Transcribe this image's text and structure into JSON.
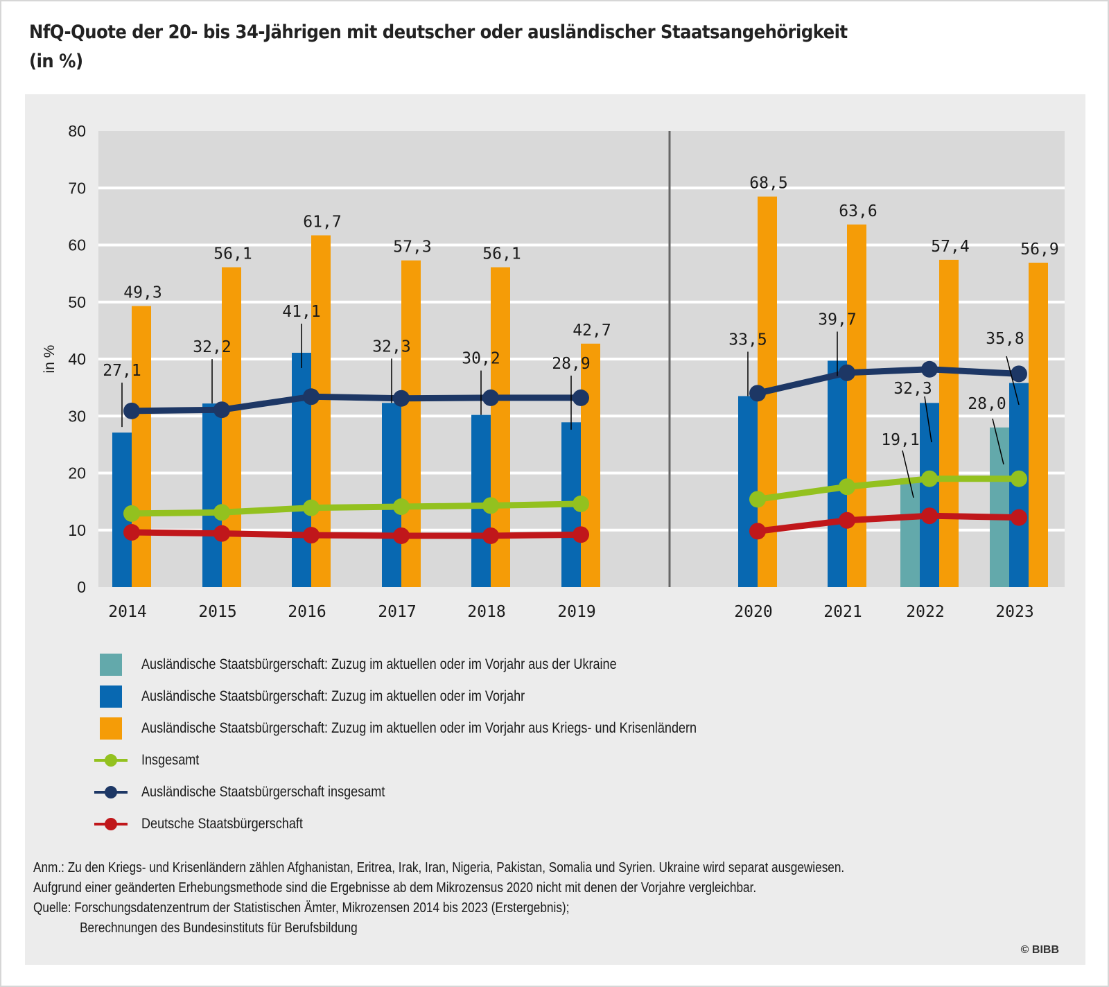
{
  "title_line1": "NfQ-Quote der 20- bis 34-Jährigen mit deutscher oder ausländischer Staatsangehörigkeit",
  "title_line2": "(in %)",
  "colors": {
    "ukraine": "#63a9ab",
    "zuzug": "#0868b1",
    "krisen": "#f59c07",
    "insgesamt": "#93c11f",
    "auslaendisch": "#1d3765",
    "deutsch": "#c0171b",
    "plot_bg": "#d9d9d9",
    "panel_bg": "#ececec",
    "grid": "#ffffff",
    "divider": "#666666"
  },
  "chart_data": {
    "type": "bar",
    "title": "NfQ-Quote der 20- bis 34-Jährigen mit deutscher oder ausländischer Staatsangehörigkeit (in %)",
    "xlabel": "",
    "ylabel": "in %",
    "ylim": [
      0,
      80
    ],
    "yticks": [
      0,
      10,
      20,
      30,
      40,
      50,
      60,
      70,
      80
    ],
    "grid": true,
    "legend_position": "bottom",
    "panels": [
      {
        "name": "left",
        "categories": [
          "2014",
          "2015",
          "2016",
          "2017",
          "2018",
          "2019"
        ]
      },
      {
        "name": "right",
        "categories": [
          "2020",
          "2021",
          "2022",
          "2023"
        ]
      }
    ],
    "categories": [
      "2014",
      "2015",
      "2016",
      "2017",
      "2018",
      "2019",
      "2020",
      "2021",
      "2022",
      "2023"
    ],
    "series": [
      {
        "name": "Ausländische Staatsbürgerschaft: Zuzug im aktuellen oder im Vorjahr aus der Ukraine",
        "kind": "bar",
        "color_key": "ukraine",
        "values": [
          null,
          null,
          null,
          null,
          null,
          null,
          null,
          null,
          19.1,
          28.0
        ],
        "labels": [
          null,
          null,
          null,
          null,
          null,
          null,
          null,
          null,
          "19,1",
          "28,0"
        ]
      },
      {
        "name": "Ausländische Staatsbürgerschaft: Zuzug im aktuellen oder im Vorjahr",
        "kind": "bar",
        "color_key": "zuzug",
        "values": [
          27.1,
          32.2,
          41.1,
          32.3,
          30.2,
          28.9,
          33.5,
          39.7,
          32.3,
          35.8
        ],
        "labels": [
          "27,1",
          "32,2",
          "41,1",
          "32,3",
          "30,2",
          "28,9",
          "33,5",
          "39,7",
          "32,3",
          "35,8"
        ]
      },
      {
        "name": "Ausländische Staatsbürgerschaft: Zuzug im aktuellen oder im Vorjahr aus Kriegs- und Krisenländern",
        "kind": "bar",
        "color_key": "krisen",
        "values": [
          49.3,
          56.1,
          61.7,
          57.3,
          56.1,
          42.7,
          68.5,
          63.6,
          57.4,
          56.9
        ],
        "labels": [
          "49,3",
          "56,1",
          "61,7",
          "57,3",
          "56,1",
          "42,7",
          "68,5",
          "63,6",
          "57,4",
          "56,9"
        ]
      },
      {
        "name": "Insgesamt",
        "kind": "line",
        "color_key": "insgesamt",
        "values": [
          12.9,
          13.1,
          13.9,
          14.1,
          14.3,
          14.6,
          15.4,
          17.6,
          19.0,
          19.0
        ]
      },
      {
        "name": "Ausländische Staatsbürgerschaft insgesamt",
        "kind": "line",
        "color_key": "auslaendisch",
        "values": [
          30.9,
          31.1,
          33.4,
          33.1,
          33.2,
          33.2,
          34.0,
          37.6,
          38.2,
          37.4
        ]
      },
      {
        "name": "Deutsche Staatsbürgerschaft",
        "kind": "line",
        "color_key": "deutsch",
        "values": [
          9.6,
          9.4,
          9.1,
          9.0,
          9.0,
          9.2,
          9.8,
          11.7,
          12.5,
          12.2
        ]
      }
    ]
  },
  "legend": [
    {
      "type": "swatch",
      "color_key": "ukraine",
      "label": "Ausländische Staatsbürgerschaft: Zuzug im aktuellen oder im Vorjahr aus der Ukraine"
    },
    {
      "type": "swatch",
      "color_key": "zuzug",
      "label": "Ausländische Staatsbürgerschaft: Zuzug im aktuellen oder im Vorjahr"
    },
    {
      "type": "swatch",
      "color_key": "krisen",
      "label": "Ausländische Staatsbürgerschaft: Zuzug im aktuellen oder im Vorjahr aus Kriegs- und Krisenländern"
    },
    {
      "type": "line",
      "color_key": "insgesamt",
      "label": "Insgesamt"
    },
    {
      "type": "line",
      "color_key": "auslaendisch",
      "label": "Ausländische Staatsbürgerschaft insgesamt"
    },
    {
      "type": "line",
      "color_key": "deutsch",
      "label": "Deutsche Staatsbürgerschaft"
    }
  ],
  "notes": {
    "anm_line1": "Anm.: Zu den Kriegs- und Krisenländern zählen Afghanistan, Eritrea, Irak, Iran, Nigeria, Pakistan, Somalia und Syrien. Ukraine wird separat ausgewiesen.",
    "anm_line2": "Aufgrund einer geänderten Erhebungsmethode sind die Ergebnisse ab dem Mikrozensus 2020 nicht mit denen der Vorjahre vergleichbar.",
    "quelle_line1": "Quelle: Forschungsdatenzentrum der Statistischen Ämter, Mikrozensen 2014 bis 2023 (Erstergebnis);",
    "quelle_line2": "Berechnungen des Bundesinstituts für Berufsbildung"
  },
  "copyright": "© BIBB"
}
